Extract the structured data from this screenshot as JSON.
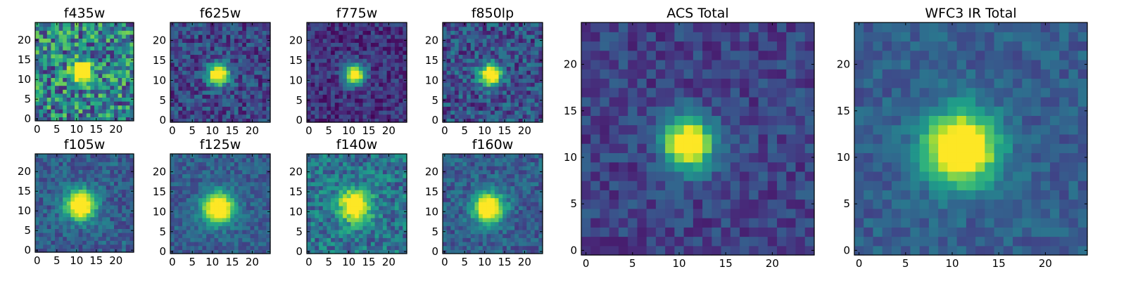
{
  "figure": {
    "grid": false,
    "colormap": "viridis",
    "colormap_stops": [
      "#440154",
      "#482878",
      "#3e4989",
      "#31688e",
      "#26828e",
      "#1f9e89",
      "#35b779",
      "#6ece58",
      "#b5de2b",
      "#fde725"
    ]
  },
  "chart_data": [
    {
      "type": "heatmap",
      "title": "f435w",
      "xlim": [
        0,
        24
      ],
      "ylim": [
        0,
        24
      ],
      "xticks": [
        0,
        5,
        10,
        15,
        20
      ],
      "yticks": [
        0,
        5,
        10,
        15,
        20
      ],
      "source": {
        "cx": 11.5,
        "cy": 12.0,
        "sigma": 1.8,
        "peak": 1.0
      },
      "background": 0.45,
      "noise": 0.35,
      "seed": 11
    },
    {
      "type": "heatmap",
      "title": "f625w",
      "xlim": [
        0,
        24
      ],
      "ylim": [
        0,
        24
      ],
      "xticks": [
        0,
        5,
        10,
        15,
        20
      ],
      "yticks": [
        0,
        5,
        10,
        15,
        20
      ],
      "source": {
        "cx": 11.5,
        "cy": 11.5,
        "sigma": 1.9,
        "peak": 1.0
      },
      "background": 0.22,
      "noise": 0.18,
      "seed": 23
    },
    {
      "type": "heatmap",
      "title": "f775w",
      "xlim": [
        0,
        24
      ],
      "ylim": [
        0,
        24
      ],
      "xticks": [
        0,
        5,
        10,
        15,
        20
      ],
      "yticks": [
        0,
        5,
        10,
        15,
        20
      ],
      "source": {
        "cx": 11.5,
        "cy": 11.5,
        "sigma": 1.8,
        "peak": 1.0
      },
      "background": 0.15,
      "noise": 0.14,
      "seed": 37
    },
    {
      "type": "heatmap",
      "title": "f850lp",
      "xlim": [
        0,
        24
      ],
      "ylim": [
        0,
        24
      ],
      "xticks": [
        0,
        5,
        10,
        15,
        20
      ],
      "yticks": [
        0,
        5,
        10,
        15,
        20
      ],
      "source": {
        "cx": 11.5,
        "cy": 11.5,
        "sigma": 1.9,
        "peak": 1.0
      },
      "background": 0.25,
      "noise": 0.2,
      "seed": 41
    },
    {
      "type": "heatmap",
      "title": "f105w",
      "xlim": [
        0,
        24
      ],
      "ylim": [
        0,
        24
      ],
      "xticks": [
        0,
        5,
        10,
        15,
        20
      ],
      "yticks": [
        0,
        5,
        10,
        15,
        20
      ],
      "source": {
        "cx": 11.0,
        "cy": 11.5,
        "sigma": 2.6,
        "peak": 1.0
      },
      "background": 0.3,
      "noise": 0.14,
      "seed": 53
    },
    {
      "type": "heatmap",
      "title": "f125w",
      "xlim": [
        0,
        24
      ],
      "ylim": [
        0,
        24
      ],
      "xticks": [
        0,
        5,
        10,
        15,
        20
      ],
      "yticks": [
        0,
        5,
        10,
        15,
        20
      ],
      "source": {
        "cx": 11.5,
        "cy": 11.0,
        "sigma": 2.7,
        "peak": 1.0
      },
      "background": 0.3,
      "noise": 0.12,
      "seed": 67
    },
    {
      "type": "heatmap",
      "title": "f140w",
      "xlim": [
        0,
        24
      ],
      "ylim": [
        0,
        24
      ],
      "xticks": [
        0,
        5,
        10,
        15,
        20
      ],
      "yticks": [
        0,
        5,
        10,
        15,
        20
      ],
      "source": {
        "cx": 11.5,
        "cy": 11.5,
        "sigma": 2.8,
        "peak": 0.85
      },
      "background": 0.38,
      "noise": 0.2,
      "seed": 71
    },
    {
      "type": "heatmap",
      "title": "f160w",
      "xlim": [
        0,
        24
      ],
      "ylim": [
        0,
        24
      ],
      "xticks": [
        0,
        5,
        10,
        15,
        20
      ],
      "yticks": [
        0,
        5,
        10,
        15,
        20
      ],
      "source": {
        "cx": 11.0,
        "cy": 11.0,
        "sigma": 2.6,
        "peak": 1.0
      },
      "background": 0.3,
      "noise": 0.14,
      "seed": 83
    },
    {
      "type": "heatmap",
      "title": "ACS Total",
      "xlim": [
        0,
        24
      ],
      "ylim": [
        0,
        24
      ],
      "xticks": [
        0,
        5,
        10,
        15,
        20
      ],
      "yticks": [
        0,
        5,
        10,
        15,
        20
      ],
      "source": {
        "cx": 11.0,
        "cy": 11.5,
        "sigma": 1.9,
        "peak": 1.0
      },
      "background": 0.2,
      "noise": 0.12,
      "seed": 97
    },
    {
      "type": "heatmap",
      "title": "WFC3 IR Total",
      "xlim": [
        0,
        24
      ],
      "ylim": [
        0,
        24
      ],
      "xticks": [
        0,
        5,
        10,
        15,
        20
      ],
      "yticks": [
        0,
        5,
        10,
        15,
        20
      ],
      "source": {
        "cx": 11.0,
        "cy": 11.0,
        "sigma": 2.7,
        "peak": 1.0
      },
      "background": 0.3,
      "noise": 0.1,
      "seed": 101
    }
  ]
}
